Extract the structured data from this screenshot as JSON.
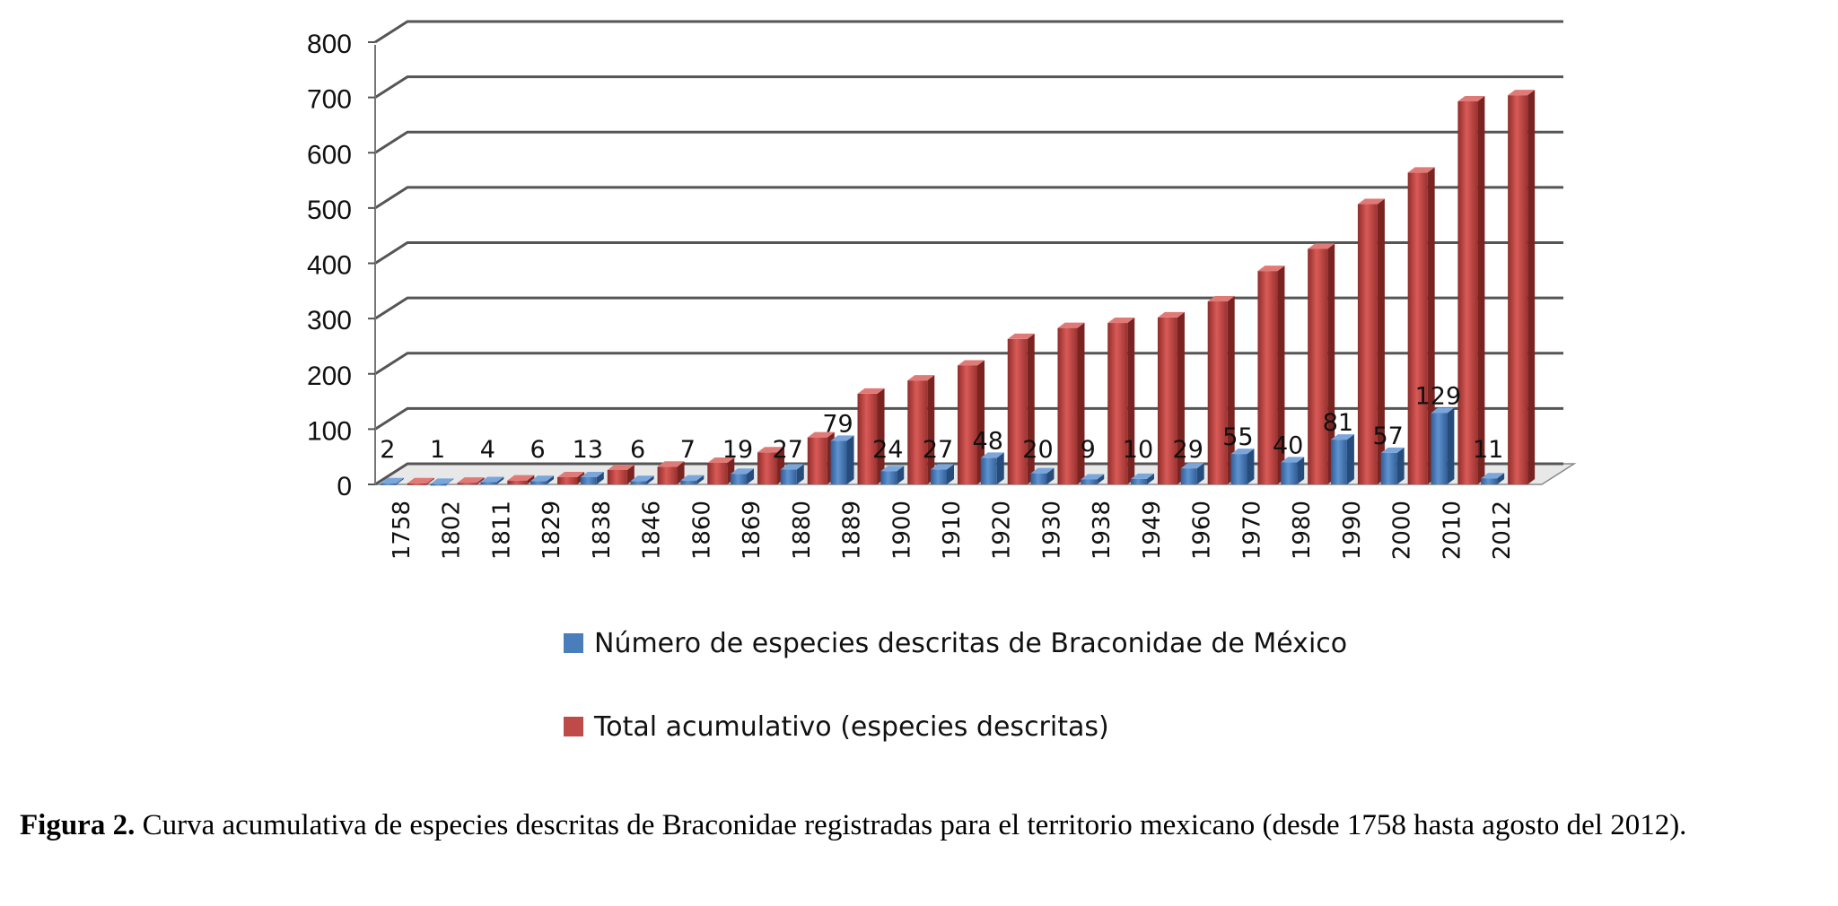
{
  "chart_data": {
    "type": "bar",
    "style": "3d-column",
    "categories": [
      "1758",
      "1802",
      "1811",
      "1829",
      "1838",
      "1846",
      "1860",
      "1869",
      "1880",
      "1889",
      "1900",
      "1910",
      "1920",
      "1930",
      "1938",
      "1949",
      "1960",
      "1970",
      "1980",
      "1990",
      "2000",
      "2010",
      "2012"
    ],
    "series": [
      {
        "name": "Número de especies descritas de Braconidae de México",
        "color": "#4a7ebb",
        "values": [
          2,
          1,
          4,
          6,
          13,
          6,
          7,
          19,
          27,
          79,
          24,
          27,
          48,
          20,
          9,
          10,
          29,
          55,
          40,
          81,
          57,
          129,
          11
        ],
        "labels": [
          "2",
          "1",
          "4",
          "6",
          "13",
          "6",
          "7",
          "19",
          "27",
          "79",
          "24",
          "27",
          "48",
          "20",
          "9",
          "10",
          "29",
          "55",
          "40",
          "81",
          "57",
          "129",
          "11"
        ]
      },
      {
        "name": "Total acumulativo (especies descritas)",
        "color": "#be4b48",
        "values": [
          2,
          3,
          7,
          13,
          26,
          32,
          39,
          58,
          85,
          164,
          188,
          215,
          263,
          283,
          292,
          302,
          331,
          386,
          426,
          507,
          564,
          693,
          704
        ]
      }
    ],
    "yticks": [
      "0",
      "100",
      "200",
      "300",
      "400",
      "500",
      "600",
      "700",
      "800"
    ],
    "ylim": [
      0,
      800
    ],
    "grid": true,
    "legend_position": "bottom"
  },
  "caption": {
    "label": "Figura 2.",
    "text": " Curva acumulativa de especies descritas de Braconidae registradas para el territorio mexicano (desde 1758 hasta agosto del 2012)."
  }
}
